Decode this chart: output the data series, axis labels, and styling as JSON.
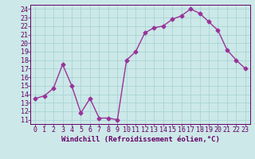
{
  "x": [
    0,
    1,
    2,
    3,
    4,
    5,
    6,
    7,
    8,
    9,
    10,
    11,
    12,
    13,
    14,
    15,
    16,
    17,
    18,
    19,
    20,
    21,
    22,
    23
  ],
  "y": [
    13.5,
    13.8,
    14.7,
    17.5,
    15.0,
    11.8,
    13.5,
    11.2,
    11.2,
    11.0,
    18.0,
    19.0,
    21.2,
    21.8,
    22.0,
    22.8,
    23.2,
    24.0,
    23.5,
    22.5,
    21.5,
    19.2,
    18.0,
    17.0
  ],
  "line_color": "#993399",
  "marker": "D",
  "marker_size": 2.5,
  "line_width": 1.0,
  "bg_color": "#cce8e8",
  "grid_color": "#aad4d4",
  "xlabel": "Windchill (Refroidissement éolien,°C)",
  "xlabel_color": "#660066",
  "xlabel_fontsize": 6.5,
  "tick_color": "#660066",
  "tick_fontsize": 6.0,
  "xlim": [
    -0.5,
    23.5
  ],
  "ylim": [
    10.5,
    24.5
  ],
  "yticks": [
    11,
    12,
    13,
    14,
    15,
    16,
    17,
    18,
    19,
    20,
    21,
    22,
    23,
    24
  ],
  "xticks": [
    0,
    1,
    2,
    3,
    4,
    5,
    6,
    7,
    8,
    9,
    10,
    11,
    12,
    13,
    14,
    15,
    16,
    17,
    18,
    19,
    20,
    21,
    22,
    23
  ]
}
